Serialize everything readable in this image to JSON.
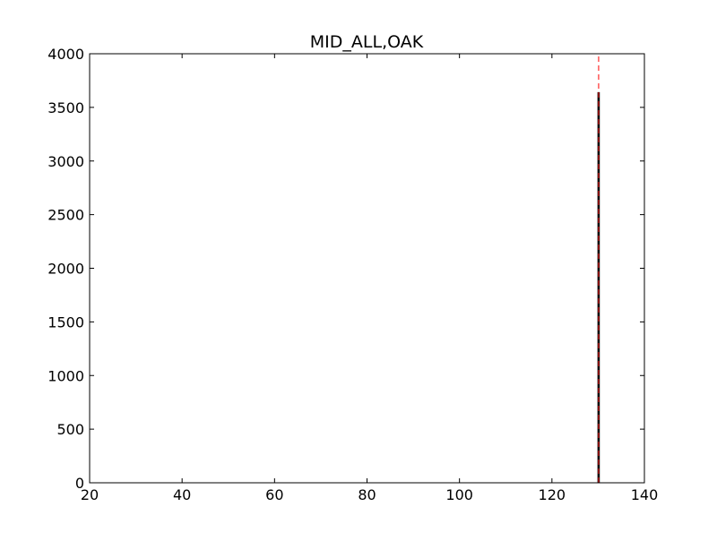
{
  "chart_data": {
    "type": "bar",
    "title": "MID_ALL,OAK",
    "xlabel": "",
    "ylabel": "",
    "xlim": [
      20,
      140
    ],
    "ylim": [
      0,
      4000
    ],
    "xticks": [
      20,
      40,
      60,
      80,
      100,
      120,
      140
    ],
    "yticks": [
      0,
      500,
      1000,
      1500,
      2000,
      2500,
      3000,
      3500,
      4000
    ],
    "bars": [
      {
        "x_start": 129.9,
        "x_end": 130.3,
        "value": 3640
      }
    ],
    "reference_line": {
      "x": 130.1,
      "style": "dashed",
      "color": "#ff0000"
    },
    "bar_color": "#000000",
    "grid": false,
    "legend": "none"
  }
}
